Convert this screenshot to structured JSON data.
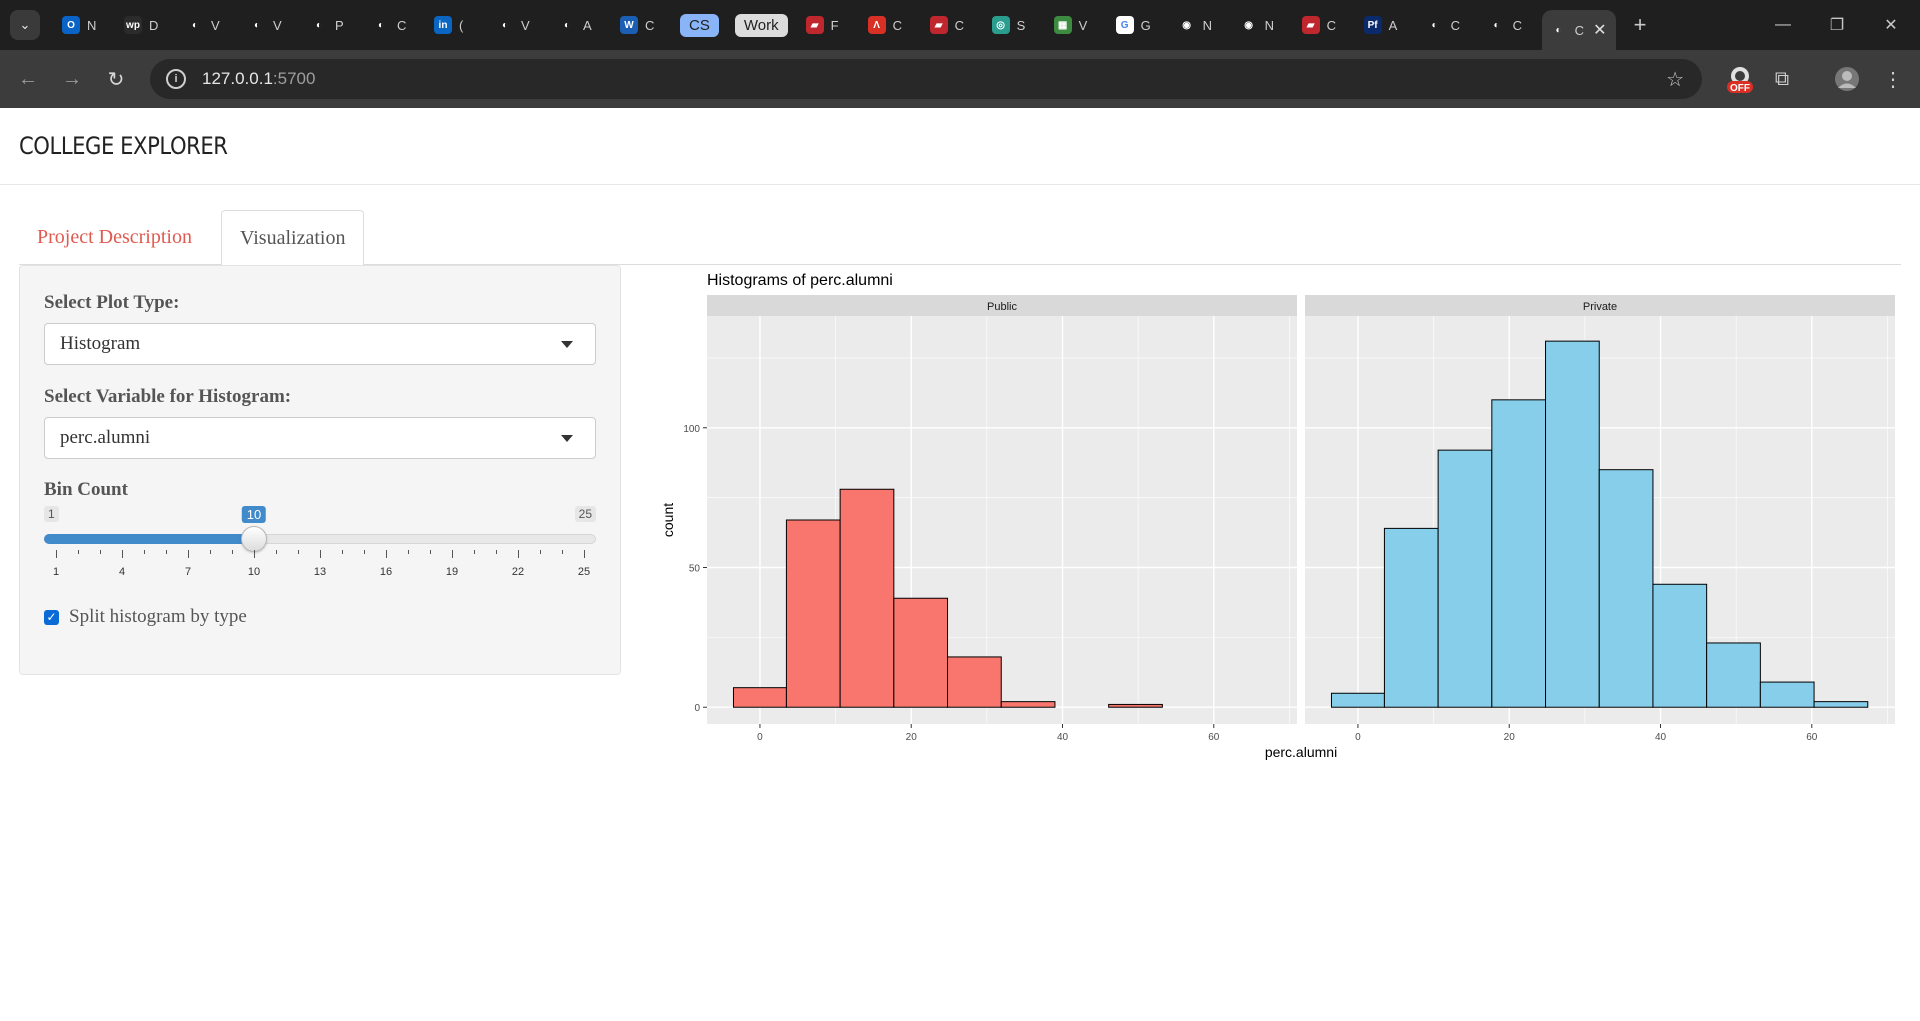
{
  "browser": {
    "tabs": [
      {
        "letter": "N",
        "color": "#0a64c8",
        "glyph": "O"
      },
      {
        "letter": "D",
        "color": "#2b2b2b",
        "glyph": "wp"
      },
      {
        "letter": "V",
        "color": "#555555",
        "glyph": "◐"
      },
      {
        "letter": "V",
        "color": "#555555",
        "glyph": "◐"
      },
      {
        "letter": "P",
        "color": "#555555",
        "glyph": "◐"
      },
      {
        "letter": "C",
        "color": "#555555",
        "glyph": "◐"
      },
      {
        "letter": "(",
        "color": "#0a66c2",
        "glyph": "in"
      },
      {
        "letter": "V",
        "color": "#555555",
        "glyph": "◐"
      },
      {
        "letter": "A",
        "color": "#555555",
        "glyph": "◐"
      },
      {
        "letter": "C",
        "color": "#1a5fb4",
        "glyph": "W"
      }
    ],
    "pill_tabs": [
      {
        "label": "CS",
        "bg": "#8ab4f8",
        "fg": "#1f1f1f"
      },
      {
        "label": "Work",
        "bg": "#dcdcdc",
        "fg": "#1f1f1f"
      }
    ],
    "tabs2": [
      {
        "letter": "F",
        "color": "#c0262d",
        "glyph": "▰"
      },
      {
        "letter": "C",
        "color": "#d93025",
        "glyph": "Λ"
      },
      {
        "letter": "C",
        "color": "#c0262d",
        "glyph": "▰"
      },
      {
        "letter": "S",
        "color": "#2a9d8f",
        "glyph": "◎"
      },
      {
        "letter": "V",
        "color": "#3d8b40",
        "glyph": "▦"
      },
      {
        "letter": "G",
        "color": "#ffffff",
        "glyph": "G"
      },
      {
        "letter": "N",
        "color": "#555555",
        "glyph": "◉"
      },
      {
        "letter": "N",
        "color": "#555555",
        "glyph": "◉"
      },
      {
        "letter": "C",
        "color": "#c0262d",
        "glyph": "▰"
      },
      {
        "letter": "A",
        "color": "#0b2a6b",
        "glyph": "Pf"
      },
      {
        "letter": "C",
        "color": "#555555",
        "glyph": "◐"
      },
      {
        "letter": "C",
        "color": "#555555",
        "glyph": "◐"
      }
    ],
    "active_tab_letter": "C",
    "url_host": "127.0.0.1",
    "url_port": ":5700",
    "ext_badge": "OFF"
  },
  "app": {
    "title": "COLLEGE EXPLORER",
    "tabs": [
      "Project Description",
      "Visualization"
    ],
    "active_tab": "Visualization"
  },
  "controls": {
    "plot_type_label": "Select Plot Type:",
    "plot_type_value": "Histogram",
    "variable_label": "Select Variable for Histogram:",
    "variable_value": "perc.alumni",
    "bin_label": "Bin Count",
    "bin_min": 1,
    "bin_max": 25,
    "bin_value": 10,
    "bin_ticks": [
      1,
      4,
      7,
      10,
      13,
      16,
      19,
      22,
      25
    ],
    "split_label": "Split histogram by type",
    "split_checked": true
  },
  "chart_data": {
    "type": "bar",
    "title": "Histograms of perc.alumni",
    "xlabel": "perc.alumni",
    "ylabel": "count",
    "xlim": [
      -7,
      71
    ],
    "ylim": [
      -6,
      140
    ],
    "xticks": [
      0,
      20,
      40,
      60
    ],
    "yticks": [
      0,
      50,
      100
    ],
    "bin_edges": [
      -3.5,
      3.5,
      10.6,
      17.7,
      24.8,
      31.9,
      39.0,
      46.1,
      53.2,
      60.3,
      67.4
    ],
    "facets": [
      {
        "name": "Public",
        "fill": "#f8766d",
        "values": [
          7,
          67,
          78,
          39,
          18,
          2,
          0,
          1,
          0,
          0
        ]
      },
      {
        "name": "Private",
        "fill": "#87ceeb",
        "values": [
          5,
          64,
          92,
          110,
          131,
          85,
          44,
          23,
          9,
          2
        ]
      }
    ]
  }
}
